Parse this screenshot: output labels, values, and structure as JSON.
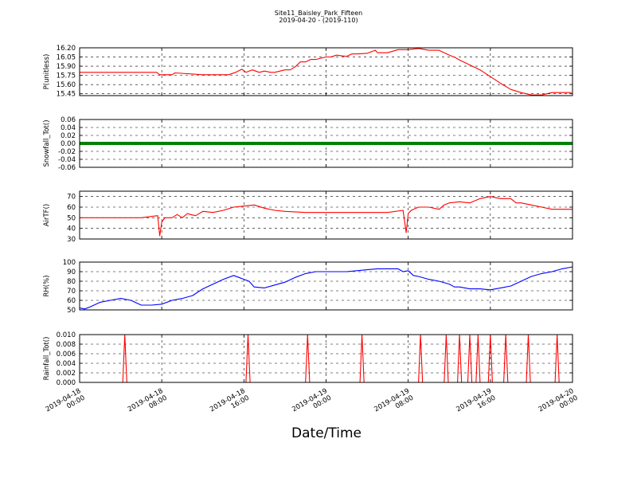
{
  "figure": {
    "title": "Site11_Baisley_Park_Fifteen",
    "subtitle": "2019-04-20 - (2019-110)",
    "xlabel": "Date/Time"
  },
  "chart_data": [
    {
      "type": "line",
      "ylabel": "P(unitless)",
      "color": "#ff0000",
      "ylim": [
        15.42,
        16.2
      ],
      "yticks": [
        "15.45",
        "15.60",
        "15.75",
        "15.90",
        "16.05",
        "16.20"
      ],
      "ytick_values": [
        15.45,
        15.6,
        15.75,
        15.9,
        16.05,
        16.2
      ],
      "x_hours": [
        0,
        7.5,
        7.8,
        9,
        9.3,
        12,
        14.5,
        15.2,
        15.8,
        16.2,
        16.8,
        17.5,
        18,
        18.6,
        19,
        20,
        20.5,
        21,
        21.5,
        22,
        22.5,
        23,
        24,
        24.5,
        25,
        26,
        26.5,
        27,
        28,
        28.8,
        29,
        29.5,
        30,
        31,
        31.5,
        32,
        33,
        34,
        35,
        36,
        36.6,
        37,
        38,
        39,
        40,
        41,
        42,
        43,
        44,
        45,
        46,
        47,
        47.9
      ],
      "values": [
        15.8,
        15.8,
        15.76,
        15.76,
        15.79,
        15.76,
        15.76,
        15.8,
        15.85,
        15.8,
        15.84,
        15.8,
        15.82,
        15.8,
        15.8,
        15.84,
        15.84,
        15.89,
        15.97,
        15.97,
        16.01,
        16.01,
        16.05,
        16.05,
        16.08,
        16.06,
        16.1,
        16.1,
        16.11,
        16.16,
        16.12,
        16.12,
        16.12,
        16.17,
        16.17,
        16.17,
        16.19,
        16.16,
        16.16,
        16.08,
        16.04,
        16.0,
        15.92,
        15.84,
        15.73,
        15.62,
        15.52,
        15.47,
        15.43,
        15.43,
        15.47,
        15.47,
        15.47
      ]
    },
    {
      "type": "line",
      "ylabel": "Snowfall_Tot()",
      "color": "#008000",
      "ylim": [
        -0.06,
        0.06
      ],
      "yticks": [
        "-0.06",
        "-0.04",
        "-0.02",
        "0.00",
        "0.02",
        "0.04",
        "0.06"
      ],
      "ytick_values": [
        -0.06,
        -0.04,
        -0.02,
        0,
        0.02,
        0.04,
        0.06
      ],
      "x_hours": [
        0,
        48
      ],
      "values": [
        0.0,
        0.0
      ]
    },
    {
      "type": "line",
      "ylabel": "AirTF()",
      "color": "#ff0000",
      "ylim": [
        30,
        75
      ],
      "yticks": [
        "30",
        "40",
        "50",
        "60",
        "70"
      ],
      "ytick_values": [
        30,
        40,
        50,
        60,
        70
      ],
      "x_hours": [
        0,
        3,
        6,
        7.6,
        7.8,
        8.0,
        8.3,
        9,
        9.5,
        10,
        10.5,
        10.8,
        11.3,
        12,
        13,
        14,
        15,
        16,
        17,
        18,
        19,
        20,
        22,
        24,
        26,
        28,
        30,
        31.5,
        31.8,
        32,
        32.3,
        33,
        34,
        35,
        35.5,
        36,
        37,
        38,
        39,
        40,
        41,
        42,
        42.5,
        43,
        44,
        45,
        46,
        47,
        48
      ],
      "values": [
        50,
        50,
        50,
        52,
        33,
        46,
        50,
        50,
        53,
        50,
        54,
        53,
        52,
        56,
        55,
        57,
        60,
        61,
        62,
        59,
        57,
        56,
        55,
        55,
        55,
        55,
        55,
        57,
        36,
        54,
        57,
        60,
        60,
        58,
        62,
        64,
        65,
        64,
        68,
        70,
        68,
        68,
        64,
        64,
        62,
        60,
        58,
        58,
        58
      ]
    },
    {
      "type": "line",
      "ylabel": "RH(%)",
      "color": "#0000ff",
      "ylim": [
        50,
        100
      ],
      "yticks": [
        "50",
        "60",
        "70",
        "80",
        "90",
        "100"
      ],
      "ytick_values": [
        50,
        60,
        70,
        80,
        90,
        100
      ],
      "x_hours": [
        0,
        0.5,
        1,
        2,
        3,
        4,
        5,
        6,
        7,
        8,
        9,
        10,
        11,
        12,
        13,
        14,
        15,
        15.5,
        16,
        16.5,
        17,
        18,
        19,
        20,
        21,
        22,
        23,
        24,
        25,
        26,
        27,
        28,
        29,
        30,
        31,
        31.5,
        32,
        32.5,
        33,
        34,
        35,
        36,
        36.5,
        37,
        38,
        39,
        40,
        41,
        42,
        43,
        44,
        45,
        46,
        47,
        48
      ],
      "values": [
        52,
        51,
        53,
        58,
        60,
        62,
        60,
        55,
        55,
        56,
        60,
        62,
        65,
        72,
        77,
        82,
        86,
        84,
        82,
        80,
        74,
        73,
        76,
        79,
        84,
        88,
        90,
        90,
        90,
        90,
        91,
        92,
        93,
        93,
        93,
        90,
        91,
        86,
        85,
        82,
        80,
        77,
        74,
        74,
        72,
        72,
        71,
        73,
        75,
        80,
        85,
        88,
        90,
        93,
        95
      ]
    },
    {
      "type": "line",
      "ylabel": "Rainfall_Tot()",
      "color": "#ff0000",
      "ylim": [
        0,
        0.01
      ],
      "yticks": [
        "0.000",
        "0.002",
        "0.004",
        "0.006",
        "0.008",
        "0.010"
      ],
      "ytick_values": [
        0,
        0.002,
        0.004,
        0.006,
        0.008,
        0.01
      ],
      "spikes_x_hours": [
        4.4,
        16.4,
        22.2,
        27.5,
        33.2,
        35.7,
        37.0,
        38.0,
        38.8,
        40.0,
        41.5,
        43.7,
        46.5
      ],
      "spike_value": 0.01
    }
  ],
  "x_axis": {
    "tick_hours": [
      0,
      8,
      16,
      24,
      32,
      40,
      48
    ],
    "tick_labels_line1": [
      "2019-04-18",
      "2019-04-18",
      "2019-04-18",
      "2019-04-19",
      "2019-04-19",
      "2019-04-19",
      "2019-04-20"
    ],
    "tick_labels_line2": [
      "00:00",
      "08:00",
      "16:00",
      "00:00",
      "08:00",
      "16:00",
      "00:00"
    ],
    "range_hours": [
      0,
      48
    ]
  }
}
